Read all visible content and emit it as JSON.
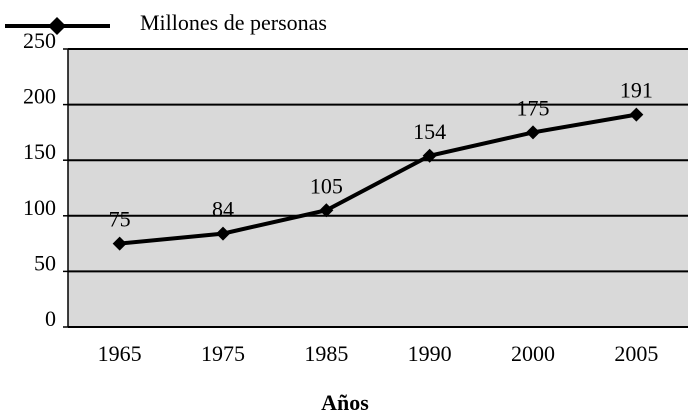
{
  "chart_data": {
    "type": "line",
    "x_label": "Años",
    "categories": [
      "1965",
      "1975",
      "1985",
      "1990",
      "2000",
      "2005"
    ],
    "series": [
      {
        "name": "Millones de personas",
        "color": "#000000",
        "values": [
          75,
          84,
          105,
          154,
          175,
          191
        ]
      }
    ],
    "ylim": [
      0,
      250
    ],
    "yticks": [
      0,
      50,
      100,
      150,
      200,
      250
    ],
    "grid": true,
    "legend": "top-left"
  }
}
